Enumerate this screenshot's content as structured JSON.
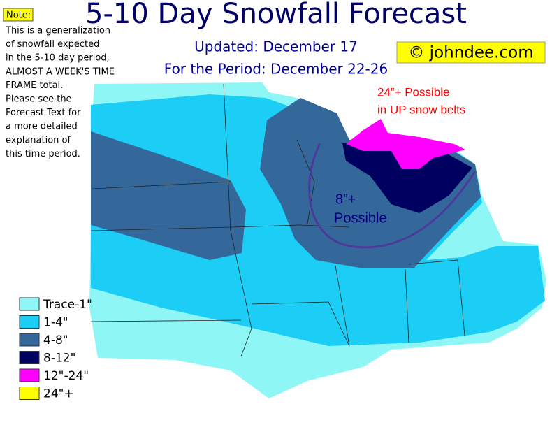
{
  "title": "5-10 Day Snowfall Forecast",
  "updated": "Updated: December 17",
  "period": "For the Period: December 22-26",
  "copyright": "© johndee.com",
  "note": {
    "label": "Note:",
    "lines": [
      "This is a generalization",
      "of snowfall expected",
      "in the 5-10 day period,",
      "ALMOST A WEEK'S TIME",
      "FRAME total.",
      "Please see the",
      "Forecast Text for",
      "a more detailed",
      "explanation of",
      "this time period."
    ]
  },
  "annotations": {
    "up_snow_belts": [
      "24”+ Possible",
      "in UP snow belts"
    ],
    "contour": [
      "8”+",
      "Possible"
    ]
  },
  "legend": [
    {
      "label": "Trace-1\"",
      "color": "#8ff6f6"
    },
    {
      "label": "1-4\"",
      "color": "#1ccdf6"
    },
    {
      "label": "4-8\"",
      "color": "#35689a"
    },
    {
      "label": "8-12\"",
      "color": "#000060"
    },
    {
      "label": "12\"-24\"",
      "color": "#ff00ff"
    },
    {
      "label": "24\"+",
      "color": "#ffff00"
    }
  ]
}
